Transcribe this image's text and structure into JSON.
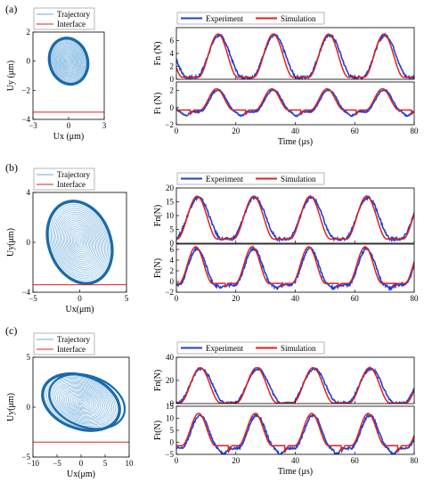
{
  "panels": [
    {
      "letter": "(a)"
    },
    {
      "letter": "(b)"
    },
    {
      "letter": "(c)"
    }
  ],
  "colors": {
    "experiment": "#1f3fd6",
    "simulation": "#e0201b",
    "trajectory": "#3a8fd0",
    "trajectory_dark": "#1a6aaa",
    "interface": "#e0201b"
  },
  "chart_data": [
    {
      "type": "line",
      "subplot": "trajectory-a",
      "xlabel": "Ux (μm)",
      "ylabel": "Uy (μm)",
      "xlim": [
        -3,
        3
      ],
      "ylim": [
        -4,
        2
      ],
      "xticks": [
        "-3",
        "0",
        "3"
      ],
      "yticks": [
        "2",
        "0",
        "-2",
        "-4"
      ],
      "series": [
        {
          "name": "Trajectory",
          "shape": "ellipse",
          "center": [
            0,
            0
          ],
          "rx": 1.6,
          "ry": 1.6,
          "tilt_deg": -15
        },
        {
          "name": "Interface",
          "y": -3.5
        }
      ],
      "legend": "top-left"
    },
    {
      "type": "line",
      "subplot": "force-a",
      "xlabel": "Time (μs)",
      "xlim": [
        0,
        80
      ],
      "xticks": [
        "0",
        "20",
        "40",
        "60",
        "80"
      ],
      "period": 18.6,
      "legend": "top",
      "series": [
        {
          "name": "Experiment"
        },
        {
          "name": "Simulation"
        }
      ],
      "fn": {
        "ylabel": "Fn (N)",
        "ylim": [
          0,
          8
        ],
        "yticks": [
          "0",
          "2",
          "4",
          "6"
        ],
        "baseline": 0.3,
        "peak": 7.0,
        "peaks_at": [
          14,
          33,
          51.5,
          70
        ]
      },
      "ft": {
        "ylabel": "Ft (N)",
        "ylim": [
          -2,
          3
        ],
        "yticks": [
          "2",
          "0",
          "-2"
        ],
        "min": -0.8,
        "max": 2.2
      }
    },
    {
      "type": "line",
      "subplot": "trajectory-b",
      "xlabel": "Ux(μm)",
      "ylabel": "Uy(μm)",
      "xlim": [
        -5,
        5
      ],
      "ylim": [
        -4,
        4
      ],
      "xticks": [
        "-5",
        "0",
        "5"
      ],
      "yticks": [
        "4",
        "0",
        "-4"
      ],
      "series": [
        {
          "name": "Trajectory",
          "shape": "ellipse",
          "center": [
            0,
            0
          ],
          "rx": 3.3,
          "ry": 3.4,
          "tilt_deg": -20
        },
        {
          "name": "Interface",
          "y": -3.4
        }
      ],
      "legend": "top-left"
    },
    {
      "type": "line",
      "subplot": "force-b",
      "xlabel": "",
      "xlim": [
        0,
        80
      ],
      "xticks": [
        "0",
        "20",
        "40",
        "60",
        "80"
      ],
      "period": 19,
      "legend": "top",
      "series": [
        {
          "name": "Experiment"
        },
        {
          "name": "Simulation"
        }
      ],
      "fn": {
        "ylabel": "Fn(N)",
        "ylim": [
          0,
          20
        ],
        "yticks": [
          "20",
          "15",
          "10",
          "5",
          "0"
        ],
        "baseline": 1.5,
        "peak": 17.0,
        "peaks_at": [
          7,
          26.5,
          45.5,
          64.5
        ]
      },
      "ft": {
        "ylabel": "Ft(N)",
        "ylim": [
          -2,
          7
        ],
        "yticks": [
          "6",
          "4",
          "2",
          "0",
          "-2"
        ],
        "min": -1.0,
        "max": 6.5
      }
    },
    {
      "type": "line",
      "subplot": "trajectory-c",
      "xlabel": "Ux(μm)",
      "ylabel": "Uy(μm)",
      "xlim": [
        -10,
        10
      ],
      "ylim": [
        -5,
        5
      ],
      "xticks": [
        "-10",
        "-5",
        "0",
        "5",
        "10"
      ],
      "yticks": [
        "5",
        "0",
        "-5"
      ],
      "series": [
        {
          "name": "Trajectory",
          "shape": "ellipse",
          "center": [
            0,
            0.5
          ],
          "rx": 5.5,
          "ry": 4.0,
          "tilt_deg": -70
        },
        {
          "name": "Interface",
          "y": -3.5
        }
      ],
      "legend": "top-left"
    },
    {
      "type": "line",
      "subplot": "force-c",
      "xlabel": "Time (μs)",
      "xlim": [
        0,
        80
      ],
      "xticks": [
        "0",
        "20",
        "40",
        "60",
        "80"
      ],
      "period": 19,
      "legend": "top",
      "series": [
        {
          "name": "Experiment"
        },
        {
          "name": "Simulation"
        }
      ],
      "fn": {
        "ylabel": "Fn(N)",
        "ylim": [
          0,
          40
        ],
        "yticks": [
          "40",
          "20",
          "0"
        ],
        "baseline": 0.5,
        "peak": 31.0,
        "peaks_at": [
          8,
          27,
          45.5,
          64.5
        ]
      },
      "ft": {
        "ylabel": "Ft(N)",
        "ylim": [
          -5,
          15
        ],
        "yticks": [
          "15",
          "10",
          "5",
          "0",
          "-5"
        ],
        "min": -4.0,
        "max": 12.0
      }
    }
  ]
}
